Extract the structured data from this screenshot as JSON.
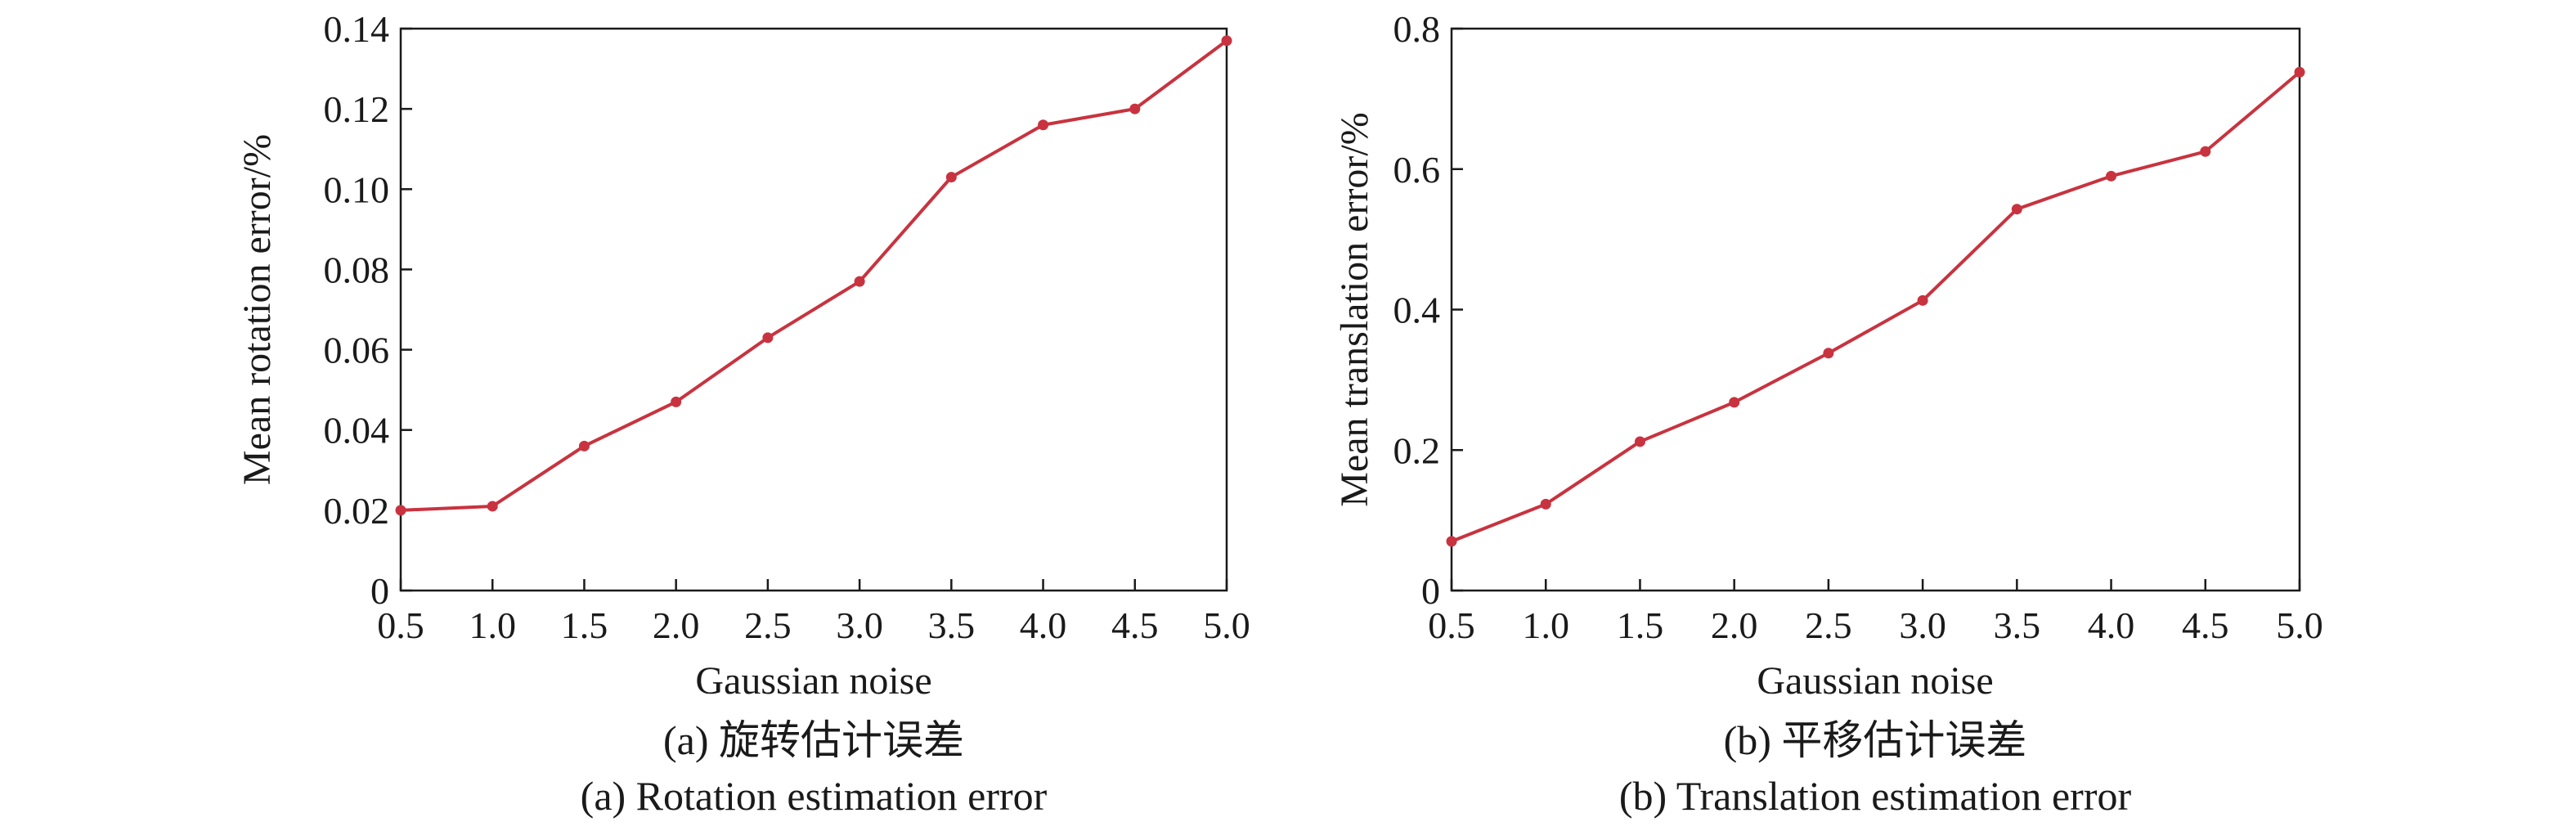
{
  "figure": {
    "series_color": "#c8333f"
  },
  "chart_data": [
    {
      "type": "line",
      "x": [
        0.5,
        1.0,
        1.5,
        2.0,
        2.5,
        3.0,
        3.5,
        4.0,
        4.5,
        5.0
      ],
      "x_tick_labels": [
        "0.5",
        "1.0",
        "1.5",
        "2.0",
        "2.5",
        "3.0",
        "3.5",
        "4.0",
        "4.5",
        "5.0"
      ],
      "y_ticks": [
        0,
        0.02,
        0.04,
        0.06,
        0.08,
        0.1,
        0.12,
        0.14
      ],
      "y_tick_labels": [
        "0",
        "0.02",
        "0.04",
        "0.06",
        "0.08",
        "0.10",
        "0.12",
        "0.14"
      ],
      "series": [
        {
          "values": [
            0.02,
            0.021,
            0.036,
            0.047,
            0.063,
            0.077,
            0.103,
            0.116,
            0.12,
            0.137
          ]
        }
      ],
      "xlabel": "Gaussian noise",
      "ylabel": "Mean rotation error/%",
      "xlim": [
        0.5,
        5.0
      ],
      "ylim": [
        0,
        0.14
      ],
      "grid": false,
      "caption_cn": "(a) 旋转估计误差",
      "caption_en": "(a) Rotation estimation error"
    },
    {
      "type": "line",
      "x": [
        0.5,
        1.0,
        1.5,
        2.0,
        2.5,
        3.0,
        3.5,
        4.0,
        4.5,
        5.0
      ],
      "x_tick_labels": [
        "0.5",
        "1.0",
        "1.5",
        "2.0",
        "2.5",
        "3.0",
        "3.5",
        "4.0",
        "4.5",
        "5.0"
      ],
      "y_ticks": [
        0,
        0.2,
        0.4,
        0.6,
        0.8
      ],
      "y_tick_labels": [
        "0",
        "0.2",
        "0.4",
        "0.6",
        "0.8"
      ],
      "series": [
        {
          "values": [
            0.07,
            0.123,
            0.212,
            0.268,
            0.338,
            0.413,
            0.543,
            0.59,
            0.625,
            0.738
          ]
        }
      ],
      "xlabel": "Gaussian noise",
      "ylabel": "Mean translation error/%",
      "xlim": [
        0.5,
        5.0
      ],
      "ylim": [
        0,
        0.8
      ],
      "grid": false,
      "caption_cn": "(b) 平移估计误差",
      "caption_en": "(b) Translation estimation error"
    }
  ]
}
